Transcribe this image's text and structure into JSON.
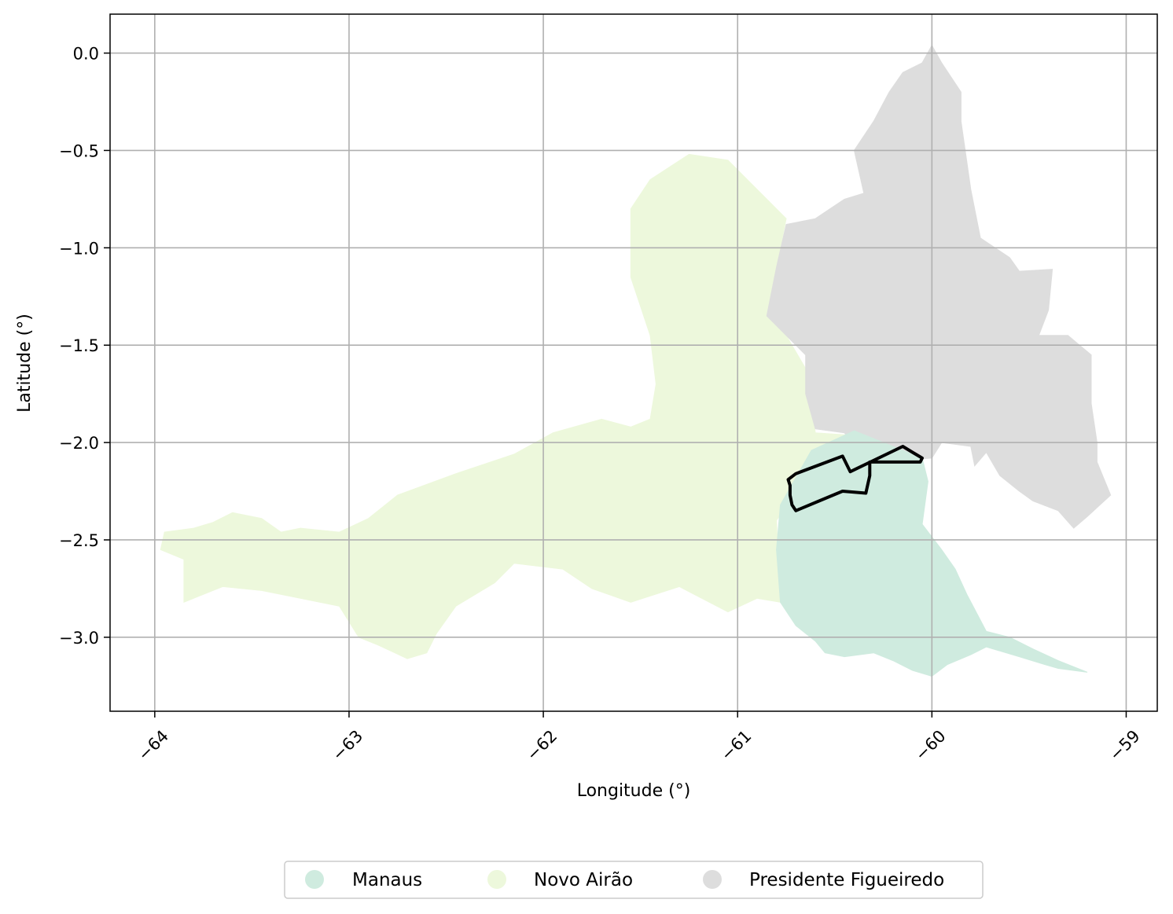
{
  "chart_data": {
    "type": "map",
    "xlabel": "Longitude (°)",
    "ylabel": "Latitude (°)",
    "xlim": [
      -64.23,
      -58.84
    ],
    "ylim": [
      -3.38,
      0.2
    ],
    "xticks": [
      -64,
      -63,
      -62,
      -61,
      -60,
      -59
    ],
    "xtick_labels": [
      "−64",
      "−63",
      "−62",
      "−61",
      "−60",
      "−59"
    ],
    "yticks": [
      0.0,
      -0.5,
      -1.0,
      -1.5,
      -2.0,
      -2.5,
      -3.0
    ],
    "ytick_labels": [
      "0.0",
      "−0.5",
      "−1.0",
      "−1.5",
      "−2.0",
      "−2.5",
      "−3.0"
    ],
    "grid": true,
    "legend_position": "bottom-center",
    "regions": [
      {
        "name": "Novo Airão",
        "color": "#edf8dc",
        "polygon": [
          [
            -63.97,
            -2.55
          ],
          [
            -63.95,
            -2.46
          ],
          [
            -63.8,
            -2.44
          ],
          [
            -63.7,
            -2.41
          ],
          [
            -63.6,
            -2.36
          ],
          [
            -63.45,
            -2.39
          ],
          [
            -63.35,
            -2.46
          ],
          [
            -63.25,
            -2.44
          ],
          [
            -63.05,
            -2.46
          ],
          [
            -62.9,
            -2.39
          ],
          [
            -62.75,
            -2.27
          ],
          [
            -62.45,
            -2.16
          ],
          [
            -62.15,
            -2.06
          ],
          [
            -61.95,
            -1.95
          ],
          [
            -61.7,
            -1.88
          ],
          [
            -61.55,
            -1.92
          ],
          [
            -61.45,
            -1.88
          ],
          [
            -61.42,
            -1.7
          ],
          [
            -61.45,
            -1.45
          ],
          [
            -61.55,
            -1.15
          ],
          [
            -61.55,
            -0.8
          ],
          [
            -61.45,
            -0.65
          ],
          [
            -61.25,
            -0.52
          ],
          [
            -61.05,
            -0.55
          ],
          [
            -60.9,
            -0.7
          ],
          [
            -60.75,
            -0.85
          ],
          [
            -60.8,
            -1.1
          ],
          [
            -60.85,
            -1.35
          ],
          [
            -60.75,
            -1.45
          ],
          [
            -60.65,
            -1.62
          ],
          [
            -60.6,
            -1.95
          ],
          [
            -60.45,
            -1.96
          ],
          [
            -60.35,
            -1.97
          ],
          [
            -60.6,
            -2.1
          ],
          [
            -60.8,
            -2.4
          ],
          [
            -60.78,
            -2.82
          ],
          [
            -60.9,
            -2.8
          ],
          [
            -61.05,
            -2.87
          ],
          [
            -61.3,
            -2.74
          ],
          [
            -61.55,
            -2.82
          ],
          [
            -61.75,
            -2.75
          ],
          [
            -61.9,
            -2.65
          ],
          [
            -62.15,
            -2.62
          ],
          [
            -62.25,
            -2.72
          ],
          [
            -62.45,
            -2.84
          ],
          [
            -62.55,
            -2.98
          ],
          [
            -62.6,
            -3.08
          ],
          [
            -62.7,
            -3.11
          ],
          [
            -62.85,
            -3.04
          ],
          [
            -62.95,
            -3.0
          ],
          [
            -63.05,
            -2.84
          ],
          [
            -63.25,
            -2.8
          ],
          [
            -63.45,
            -2.76
          ],
          [
            -63.65,
            -2.74
          ],
          [
            -63.75,
            -2.78
          ],
          [
            -63.85,
            -2.82
          ],
          [
            -63.85,
            -2.6
          ],
          [
            -63.97,
            -2.55
          ]
        ]
      },
      {
        "name": "Presidente Figueiredo",
        "color": "#dddddd",
        "polygon": [
          [
            -60.0,
            0.04
          ],
          [
            -59.95,
            -0.05
          ],
          [
            -59.85,
            -0.2
          ],
          [
            -59.85,
            -0.35
          ],
          [
            -59.8,
            -0.7
          ],
          [
            -59.75,
            -0.95
          ],
          [
            -59.6,
            -1.05
          ],
          [
            -59.55,
            -1.12
          ],
          [
            -59.38,
            -1.11
          ],
          [
            -59.4,
            -1.32
          ],
          [
            -59.45,
            -1.45
          ],
          [
            -59.3,
            -1.45
          ],
          [
            -59.18,
            -1.55
          ],
          [
            -59.18,
            -1.8
          ],
          [
            -59.15,
            -2.0
          ],
          [
            -59.15,
            -2.1
          ],
          [
            -59.08,
            -2.27
          ],
          [
            -59.2,
            -2.38
          ],
          [
            -59.27,
            -2.44
          ],
          [
            -59.35,
            -2.35
          ],
          [
            -59.48,
            -2.3
          ],
          [
            -59.55,
            -2.25
          ],
          [
            -59.65,
            -2.17
          ],
          [
            -59.72,
            -2.05
          ],
          [
            -59.78,
            -2.12
          ],
          [
            -59.8,
            -2.02
          ],
          [
            -59.95,
            -2.0
          ],
          [
            -60.0,
            -2.08
          ],
          [
            -60.3,
            -2.1
          ],
          [
            -60.4,
            -2.02
          ],
          [
            -60.45,
            -1.95
          ],
          [
            -60.6,
            -1.93
          ],
          [
            -60.65,
            -1.75
          ],
          [
            -60.65,
            -1.55
          ],
          [
            -60.75,
            -1.45
          ],
          [
            -60.85,
            -1.35
          ],
          [
            -60.8,
            -1.1
          ],
          [
            -60.75,
            -0.88
          ],
          [
            -60.6,
            -0.85
          ],
          [
            -60.45,
            -0.75
          ],
          [
            -60.35,
            -0.72
          ],
          [
            -60.4,
            -0.5
          ],
          [
            -60.3,
            -0.35
          ],
          [
            -60.22,
            -0.2
          ],
          [
            -60.15,
            -0.1
          ],
          [
            -60.05,
            -0.05
          ],
          [
            -60.0,
            0.04
          ]
        ]
      },
      {
        "name": "Manaus",
        "color": "#cfebdf",
        "polygon": [
          [
            -60.4,
            -1.94
          ],
          [
            -60.62,
            -2.04
          ],
          [
            -60.78,
            -2.32
          ],
          [
            -60.8,
            -2.55
          ],
          [
            -60.78,
            -2.82
          ],
          [
            -60.7,
            -2.94
          ],
          [
            -60.6,
            -3.02
          ],
          [
            -60.55,
            -3.08
          ],
          [
            -60.45,
            -3.1
          ],
          [
            -60.3,
            -3.08
          ],
          [
            -60.2,
            -3.12
          ],
          [
            -60.1,
            -3.17
          ],
          [
            -60.0,
            -3.2
          ],
          [
            -59.92,
            -3.14
          ],
          [
            -59.8,
            -3.09
          ],
          [
            -59.72,
            -3.05
          ],
          [
            -59.55,
            -3.1
          ],
          [
            -59.42,
            -3.14
          ],
          [
            -59.35,
            -3.16
          ],
          [
            -59.2,
            -3.18
          ],
          [
            -59.35,
            -3.12
          ],
          [
            -59.48,
            -3.06
          ],
          [
            -59.6,
            -3.0
          ],
          [
            -59.72,
            -2.97
          ],
          [
            -59.82,
            -2.78
          ],
          [
            -59.88,
            -2.65
          ],
          [
            -59.95,
            -2.55
          ],
          [
            -60.05,
            -2.42
          ],
          [
            -60.02,
            -2.2
          ],
          [
            -60.05,
            -2.08
          ],
          [
            -60.15,
            -2.04
          ],
          [
            -60.3,
            -1.98
          ],
          [
            -60.4,
            -1.94
          ]
        ]
      }
    ],
    "outline": [
      [
        -60.15,
        -2.02
      ],
      [
        -60.1,
        -2.05
      ],
      [
        -60.05,
        -2.08
      ],
      [
        -60.06,
        -2.1
      ],
      [
        -60.32,
        -2.1
      ],
      [
        -60.32,
        -2.17
      ],
      [
        -60.34,
        -2.26
      ],
      [
        -60.46,
        -2.25
      ],
      [
        -60.58,
        -2.3
      ],
      [
        -60.7,
        -2.35
      ],
      [
        -60.72,
        -2.32
      ],
      [
        -60.73,
        -2.27
      ],
      [
        -60.73,
        -2.22
      ],
      [
        -60.74,
        -2.19
      ],
      [
        -60.7,
        -2.16
      ],
      [
        -60.46,
        -2.07
      ],
      [
        -60.42,
        -2.15
      ],
      [
        -60.15,
        -2.02
      ]
    ],
    "legend": [
      {
        "label": "Manaus",
        "color": "#cfebdf"
      },
      {
        "label": "Novo Airão",
        "color": "#edf8dc"
      },
      {
        "label": "Presidente Figueiredo",
        "color": "#dddddd"
      }
    ]
  }
}
